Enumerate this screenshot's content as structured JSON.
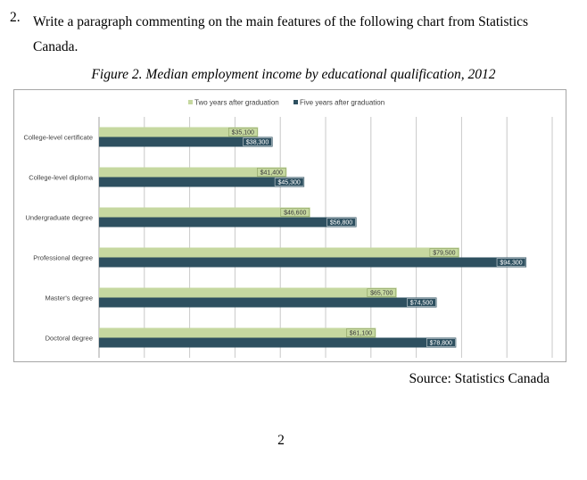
{
  "question": {
    "number": "2.",
    "text": "Write a paragraph commenting on the main features of the following chart from Statistics Canada."
  },
  "figure_caption": "Figure 2. Median employment income by educational qualification, 2012",
  "source": "Source: Statistics Canada",
  "page_number": "2",
  "colors": {
    "two_years": "#c6d8a0",
    "five_years": "#2e5060",
    "grid": "#c8c8c8"
  },
  "chart_data": {
    "type": "bar",
    "orientation": "horizontal",
    "title": "Figure 2. Median employment income by educational qualification, 2012",
    "categories": [
      "College-level certificate",
      "College-level diploma",
      "Undergraduate degree",
      "Professional degree",
      "Master's degree",
      "Doctoral degree"
    ],
    "series": [
      {
        "name": "Two years after graduation",
        "values": [
          35100,
          41400,
          46600,
          79500,
          65700,
          61100
        ],
        "labels": [
          "$35,100",
          "$41,400",
          "$46,600",
          "$79,500",
          "$65,700",
          "$61,100"
        ]
      },
      {
        "name": "Five years after graduation",
        "values": [
          38300,
          45300,
          56800,
          94300,
          74500,
          78800
        ],
        "labels": [
          "$38,300",
          "$45,300",
          "$56,800",
          "$94,300",
          "$74,500",
          "$78,800"
        ]
      }
    ],
    "xlim": [
      0,
      100000
    ],
    "legend": "top-center",
    "grid": true,
    "xlabel": "",
    "ylabel": ""
  }
}
